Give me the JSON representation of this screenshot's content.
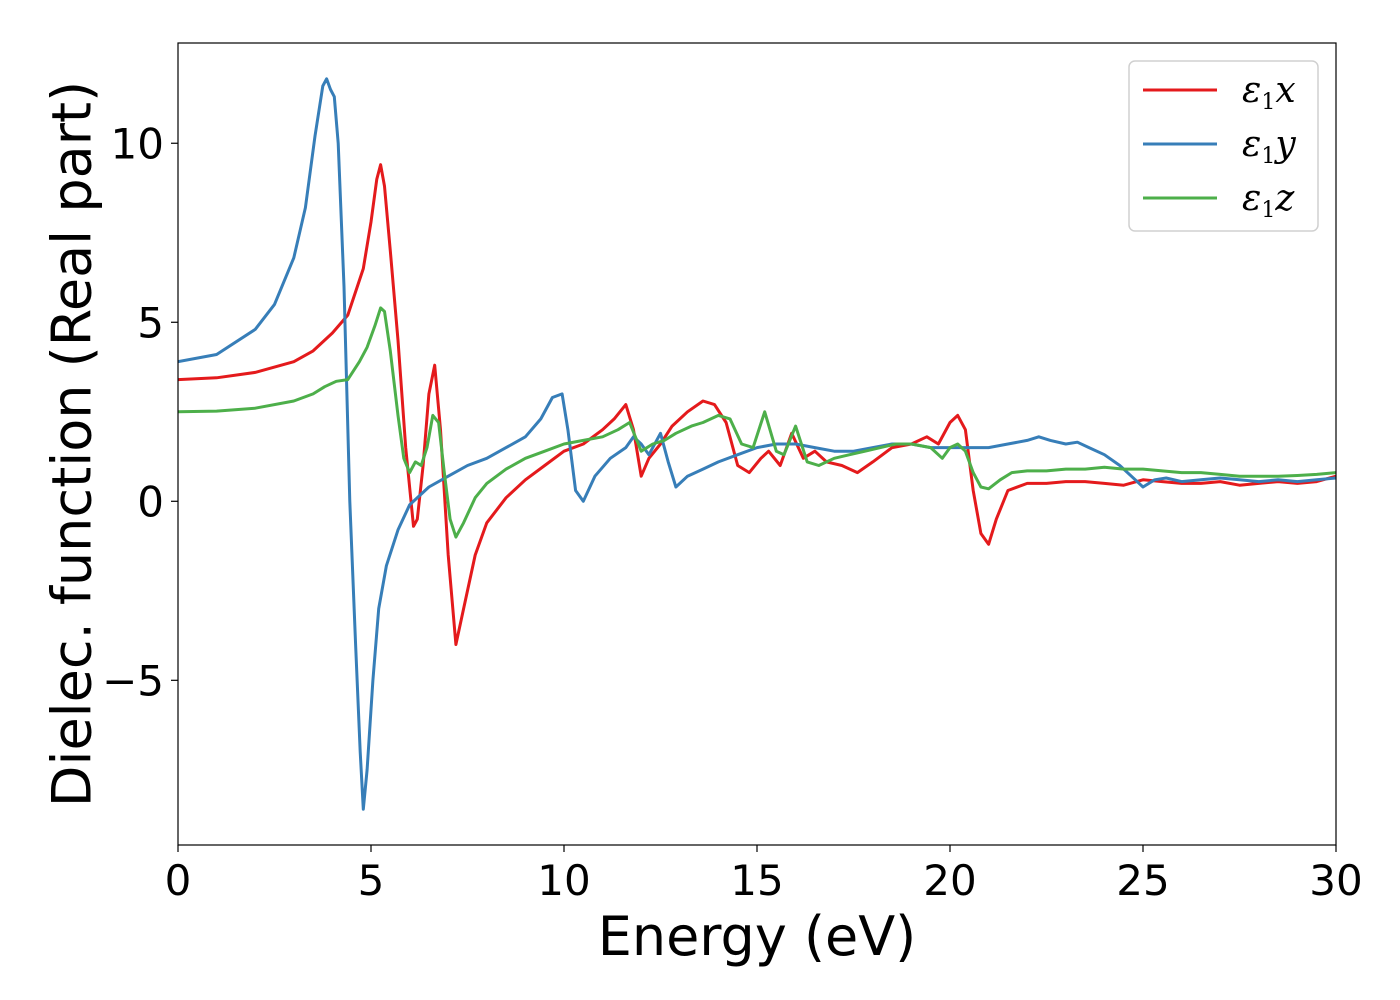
{
  "chart_data": {
    "type": "line",
    "title": "",
    "xlabel": "Energy (eV)",
    "ylabel": "Dielec. function (Real part)",
    "xlim": [
      0,
      30
    ],
    "ylim": [
      -9.6,
      12.8
    ],
    "xticks": [
      0,
      5,
      10,
      15,
      20,
      25,
      30
    ],
    "yticks": [
      -5,
      0,
      5,
      10
    ],
    "xtick_labels": [
      "0",
      "5",
      "10",
      "15",
      "20",
      "25",
      "30"
    ],
    "ytick_labels": [
      "−5",
      "0",
      "5",
      "10"
    ],
    "grid": false,
    "legend_position": "top-right",
    "series": [
      {
        "name": "ε₁x",
        "legend_main": "ε",
        "legend_sub": "1",
        "legend_var": "x",
        "color": "#e41a1c",
        "x": [
          0,
          1,
          2,
          3,
          3.5,
          4,
          4.4,
          4.8,
          5.0,
          5.15,
          5.25,
          5.35,
          5.5,
          5.7,
          5.9,
          6.1,
          6.2,
          6.35,
          6.5,
          6.65,
          6.8,
          7.0,
          7.2,
          7.4,
          7.7,
          8.0,
          8.5,
          9,
          9.5,
          10,
          10.5,
          11,
          11.3,
          11.6,
          11.8,
          12.0,
          12.2,
          12.5,
          12.8,
          13.2,
          13.6,
          13.9,
          14.2,
          14.5,
          14.8,
          15.1,
          15.3,
          15.6,
          15.9,
          16.2,
          16.5,
          16.8,
          17.2,
          17.6,
          18,
          18.5,
          19,
          19.4,
          19.7,
          20.0,
          20.2,
          20.4,
          20.6,
          20.8,
          21.0,
          21.2,
          21.5,
          22,
          22.5,
          23,
          23.5,
          24,
          24.5,
          25,
          25.5,
          26,
          26.5,
          27,
          27.5,
          28,
          28.5,
          29,
          29.5,
          30
        ],
        "y": [
          3.4,
          3.45,
          3.6,
          3.9,
          4.2,
          4.7,
          5.2,
          6.5,
          7.8,
          9.0,
          9.4,
          8.8,
          7.0,
          4.5,
          1.5,
          -0.7,
          -0.5,
          1.0,
          3.0,
          3.8,
          2.0,
          -1.5,
          -4.0,
          -3.0,
          -1.5,
          -0.6,
          0.1,
          0.6,
          1.0,
          1.4,
          1.6,
          2.0,
          2.3,
          2.7,
          2.0,
          0.7,
          1.2,
          1.6,
          2.1,
          2.5,
          2.8,
          2.7,
          2.2,
          1.0,
          0.8,
          1.2,
          1.4,
          1.0,
          1.9,
          1.2,
          1.4,
          1.1,
          1.0,
          0.8,
          1.1,
          1.5,
          1.6,
          1.8,
          1.6,
          2.2,
          2.4,
          2.0,
          0.3,
          -0.9,
          -1.2,
          -0.5,
          0.3,
          0.5,
          0.5,
          0.55,
          0.55,
          0.5,
          0.45,
          0.6,
          0.55,
          0.5,
          0.5,
          0.55,
          0.45,
          0.5,
          0.55,
          0.5,
          0.55,
          0.7
        ]
      },
      {
        "name": "ε₁y",
        "legend_main": "ε",
        "legend_sub": "1",
        "legend_var": "y",
        "color": "#377eb8",
        "x": [
          0,
          1,
          2,
          2.5,
          3,
          3.3,
          3.55,
          3.75,
          3.85,
          3.95,
          4.05,
          4.15,
          4.3,
          4.45,
          4.6,
          4.72,
          4.8,
          4.9,
          5.05,
          5.2,
          5.4,
          5.7,
          6.0,
          6.5,
          7,
          7.5,
          8,
          8.5,
          9,
          9.4,
          9.7,
          9.95,
          10.1,
          10.3,
          10.5,
          10.8,
          11.2,
          11.6,
          11.8,
          12.0,
          12.2,
          12.5,
          12.7,
          12.9,
          13.2,
          13.6,
          14,
          14.5,
          15,
          15.5,
          16,
          16.5,
          17,
          17.5,
          18,
          18.5,
          19,
          19.5,
          20,
          20.5,
          21,
          21.5,
          22,
          22.3,
          22.6,
          23,
          23.3,
          23.6,
          24,
          24.4,
          24.8,
          25.0,
          25.3,
          25.6,
          26,
          26.5,
          27,
          27.5,
          28,
          28.5,
          29,
          29.5,
          30
        ],
        "y": [
          3.9,
          4.1,
          4.8,
          5.5,
          6.8,
          8.2,
          10.2,
          11.6,
          11.8,
          11.5,
          11.3,
          10.0,
          6.0,
          0.0,
          -4.0,
          -7.0,
          -8.6,
          -7.5,
          -5.0,
          -3.0,
          -1.8,
          -0.8,
          -0.1,
          0.4,
          0.7,
          1.0,
          1.2,
          1.5,
          1.8,
          2.3,
          2.9,
          3.0,
          2.0,
          0.3,
          0.0,
          0.7,
          1.2,
          1.5,
          1.8,
          1.6,
          1.3,
          1.9,
          1.1,
          0.4,
          0.7,
          0.9,
          1.1,
          1.3,
          1.5,
          1.6,
          1.6,
          1.5,
          1.4,
          1.4,
          1.5,
          1.6,
          1.6,
          1.5,
          1.5,
          1.5,
          1.5,
          1.6,
          1.7,
          1.8,
          1.7,
          1.6,
          1.65,
          1.5,
          1.3,
          1.0,
          0.6,
          0.4,
          0.6,
          0.65,
          0.55,
          0.6,
          0.65,
          0.6,
          0.55,
          0.6,
          0.55,
          0.6,
          0.65
        ]
      },
      {
        "name": "ε₁z",
        "legend_main": "ε",
        "legend_sub": "1",
        "legend_var": "z",
        "color": "#4daf4a",
        "x": [
          0,
          1,
          2,
          3,
          3.5,
          3.8,
          4.1,
          4.4,
          4.7,
          4.9,
          5.1,
          5.25,
          5.35,
          5.5,
          5.7,
          5.85,
          6.0,
          6.15,
          6.3,
          6.45,
          6.6,
          6.75,
          6.9,
          7.05,
          7.2,
          7.4,
          7.7,
          8.0,
          8.5,
          9,
          9.5,
          10,
          10.5,
          11,
          11.4,
          11.7,
          12.0,
          12.3,
          12.6,
          12.9,
          13.3,
          13.6,
          14.0,
          14.3,
          14.6,
          14.9,
          15.2,
          15.5,
          15.7,
          16.0,
          16.3,
          16.6,
          17.0,
          17.4,
          17.8,
          18.2,
          18.6,
          19.0,
          19.5,
          19.8,
          20.0,
          20.2,
          20.4,
          20.6,
          20.8,
          21.0,
          21.3,
          21.6,
          22,
          22.5,
          23,
          23.5,
          24,
          24.5,
          25,
          25.5,
          26,
          26.5,
          27,
          27.5,
          28,
          28.5,
          29,
          29.5,
          30
        ],
        "y": [
          2.5,
          2.52,
          2.6,
          2.8,
          3.0,
          3.2,
          3.35,
          3.4,
          3.9,
          4.3,
          4.9,
          5.4,
          5.3,
          4.2,
          2.4,
          1.2,
          0.8,
          1.1,
          1.0,
          1.5,
          2.4,
          2.2,
          0.8,
          -0.5,
          -1.0,
          -0.6,
          0.1,
          0.5,
          0.9,
          1.2,
          1.4,
          1.6,
          1.7,
          1.8,
          2.0,
          2.2,
          1.4,
          1.6,
          1.7,
          1.9,
          2.1,
          2.2,
          2.4,
          2.3,
          1.6,
          1.5,
          2.5,
          1.4,
          1.3,
          2.1,
          1.1,
          1.0,
          1.2,
          1.3,
          1.4,
          1.5,
          1.6,
          1.6,
          1.5,
          1.2,
          1.5,
          1.6,
          1.4,
          0.8,
          0.4,
          0.35,
          0.6,
          0.8,
          0.85,
          0.85,
          0.9,
          0.9,
          0.95,
          0.9,
          0.9,
          0.85,
          0.8,
          0.8,
          0.75,
          0.7,
          0.7,
          0.7,
          0.72,
          0.75,
          0.8
        ]
      }
    ]
  }
}
